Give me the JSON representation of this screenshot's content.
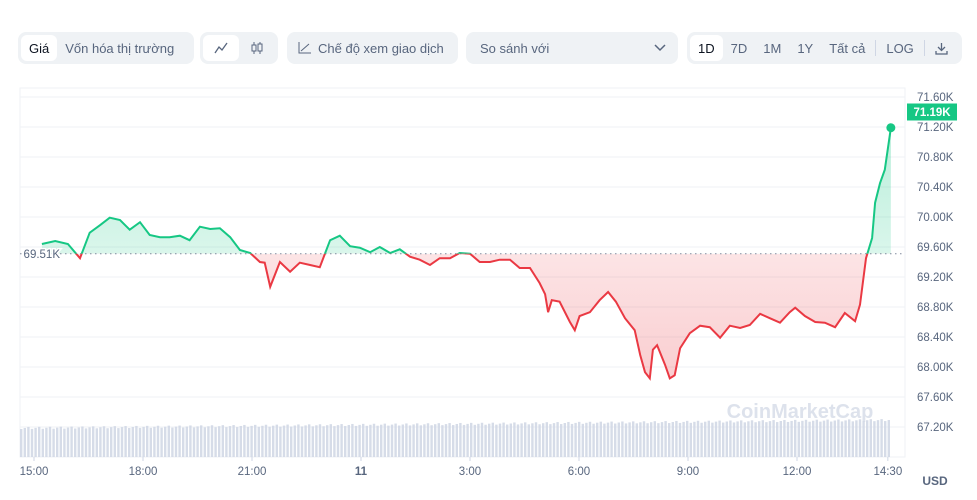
{
  "toolbar": {
    "type_tabs": [
      "Giá",
      "Vốn hóa thị trường"
    ],
    "chart_style_icons": [
      "line-chart-icon",
      "candlestick-icon"
    ],
    "trading_view_label": "Chế độ xem giao dịch",
    "compare_label": "So sánh với",
    "ranges": [
      "1D",
      "7D",
      "1M",
      "1Y",
      "Tất cả"
    ],
    "active_range": "1D",
    "log_label": "LOG",
    "download_icon": "download-icon"
  },
  "chart_data": {
    "type": "line",
    "title": "",
    "xlabel": "",
    "ylabel": "",
    "currency_label": "USD",
    "reference_price_label": "69.51K",
    "reference_price": 69.51,
    "current_price_label": "71.19K",
    "current_price": 71.19,
    "ylim": [
      66.9,
      71.75
    ],
    "y_ticks": [
      "71.60K",
      "71.20K",
      "70.80K",
      "70.40K",
      "70.00K",
      "69.60K",
      "69.20K",
      "68.80K",
      "68.40K",
      "68.00K",
      "67.60K",
      "67.20K"
    ],
    "y_tick_values": [
      71.6,
      71.2,
      70.8,
      70.4,
      70.0,
      69.6,
      69.2,
      68.8,
      68.4,
      68.0,
      67.6,
      67.2
    ],
    "x_ticks": [
      "15:00",
      "18:00",
      "21:00",
      "11",
      "3:00",
      "6:00",
      "9:00",
      "12:00",
      "14:30"
    ],
    "x_tick_times": [
      "15:00",
      "18:00",
      "21:00",
      "24:00",
      "27:00",
      "30:00",
      "33:00",
      "36:00",
      "38:30"
    ],
    "grid": true,
    "colors": {
      "up": "#16c784",
      "down": "#ea3943",
      "volume": "#cfd6e4"
    },
    "watermark": "CoinMarketCap",
    "series": [
      {
        "points": [
          [
            "15:13",
            69.64
          ],
          [
            "15:35",
            69.68
          ],
          [
            "15:56",
            69.64
          ],
          [
            "16:16",
            69.45
          ],
          [
            "16:32",
            69.79
          ],
          [
            "16:49",
            69.89
          ],
          [
            "17:05",
            69.99
          ],
          [
            "17:22",
            69.96
          ],
          [
            "17:38",
            69.83
          ],
          [
            "17:55",
            69.93
          ],
          [
            "18:11",
            69.76
          ],
          [
            "18:28",
            69.73
          ],
          [
            "18:44",
            69.73
          ],
          [
            "19:01",
            69.75
          ],
          [
            "19:17",
            69.69
          ],
          [
            "19:34",
            69.87
          ],
          [
            "19:51",
            69.84
          ],
          [
            "20:07",
            69.85
          ],
          [
            "20:24",
            69.73
          ],
          [
            "20:40",
            69.56
          ],
          [
            "20:57",
            69.52
          ],
          [
            "21:13",
            69.4
          ],
          [
            "21:21",
            69.39
          ],
          [
            "21:30",
            69.07
          ],
          [
            "21:46",
            69.4
          ],
          [
            "22:03",
            69.27
          ],
          [
            "22:19",
            69.39
          ],
          [
            "22:36",
            69.36
          ],
          [
            "22:52",
            69.33
          ],
          [
            "23:09",
            69.69
          ],
          [
            "23:25",
            69.75
          ],
          [
            "23:42",
            69.61
          ],
          [
            "23:58",
            69.59
          ],
          [
            "00:15",
            69.53
          ],
          [
            "00:31",
            69.6
          ],
          [
            "00:48",
            69.52
          ],
          [
            "01:04",
            69.57
          ],
          [
            "01:21",
            69.47
          ],
          [
            "01:37",
            69.43
          ],
          [
            "01:54",
            69.36
          ],
          [
            "02:10",
            69.45
          ],
          [
            "02:27",
            69.45
          ],
          [
            "02:43",
            69.52
          ],
          [
            "03:00",
            69.51
          ],
          [
            "03:16",
            69.4
          ],
          [
            "03:33",
            69.4
          ],
          [
            "03:49",
            69.43
          ],
          [
            "04:06",
            69.43
          ],
          [
            "04:22",
            69.32
          ],
          [
            "04:39",
            69.32
          ],
          [
            "04:55",
            69.12
          ],
          [
            "05:04",
            68.97
          ],
          [
            "05:09",
            68.73
          ],
          [
            "05:15",
            68.89
          ],
          [
            "05:28",
            68.87
          ],
          [
            "05:45",
            68.6
          ],
          [
            "05:53",
            68.49
          ],
          [
            "06:01",
            68.68
          ],
          [
            "06:18",
            68.73
          ],
          [
            "06:34",
            68.89
          ],
          [
            "06:48",
            69.0
          ],
          [
            "07:01",
            68.87
          ],
          [
            "07:16",
            68.65
          ],
          [
            "07:32",
            68.49
          ],
          [
            "07:41",
            68.16
          ],
          [
            "07:49",
            67.93
          ],
          [
            "07:57",
            67.85
          ],
          [
            "08:02",
            68.23
          ],
          [
            "08:09",
            68.29
          ],
          [
            "08:22",
            68.03
          ],
          [
            "08:30",
            67.85
          ],
          [
            "08:38",
            67.89
          ],
          [
            "08:47",
            68.25
          ],
          [
            "09:03",
            68.45
          ],
          [
            "09:20",
            68.55
          ],
          [
            "09:36",
            68.53
          ],
          [
            "09:53",
            68.39
          ],
          [
            "10:09",
            68.55
          ],
          [
            "10:26",
            68.52
          ],
          [
            "10:42",
            68.56
          ],
          [
            "10:59",
            68.71
          ],
          [
            "11:15",
            68.65
          ],
          [
            "11:32",
            68.59
          ],
          [
            "11:48",
            68.73
          ],
          [
            "11:57",
            68.79
          ],
          [
            "12:13",
            68.68
          ],
          [
            "12:30",
            68.6
          ],
          [
            "12:46",
            68.59
          ],
          [
            "13:03",
            68.53
          ],
          [
            "13:19",
            68.72
          ],
          [
            "13:36",
            68.61
          ],
          [
            "13:44",
            68.83
          ],
          [
            "13:54",
            69.45
          ],
          [
            "14:04",
            69.72
          ],
          [
            "14:09",
            70.19
          ],
          [
            "14:17",
            70.45
          ],
          [
            "14:25",
            70.63
          ],
          [
            "14:35",
            71.19
          ]
        ]
      }
    ]
  }
}
